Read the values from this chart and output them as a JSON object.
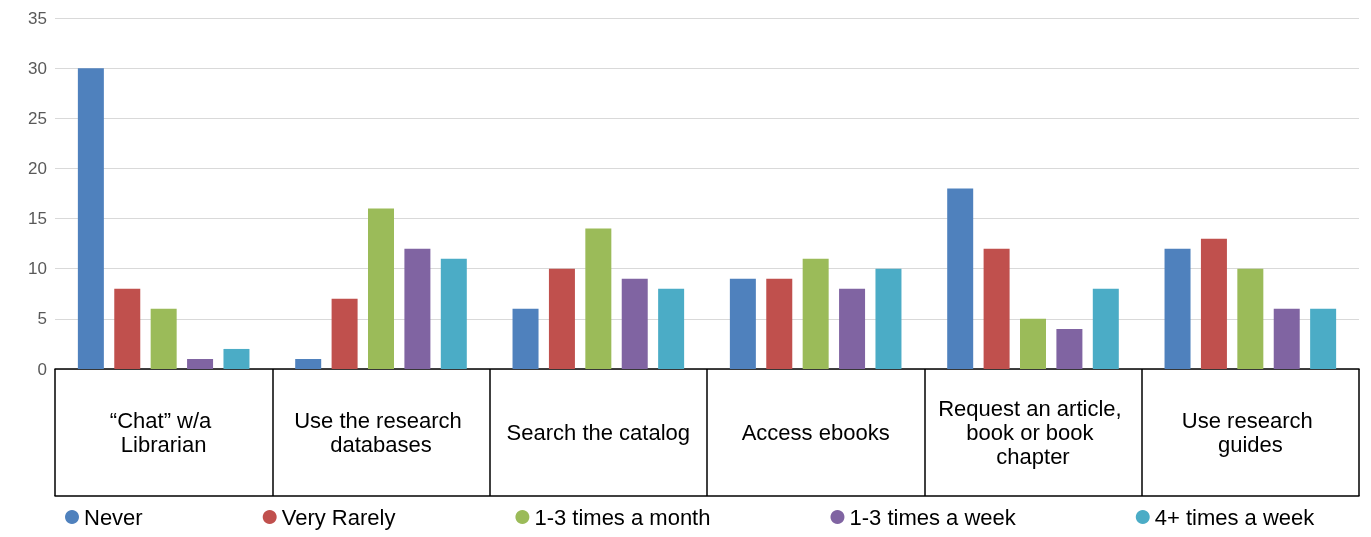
{
  "chart_data": {
    "type": "bar",
    "categories": [
      "“Chat” w/a Librarian",
      "Use the research databases",
      "Search the catalog",
      "Access ebooks",
      "Request an article, book or book chapter",
      "Use research guides"
    ],
    "series": [
      {
        "name": "Never",
        "color": "#4f81bd",
        "values": [
          30,
          1,
          6,
          9,
          18,
          12
        ]
      },
      {
        "name": "Very Rarely",
        "color": "#c0504d",
        "values": [
          8,
          7,
          10,
          9,
          12,
          13
        ]
      },
      {
        "name": "1-3 times a month",
        "color": "#9bbb59",
        "values": [
          6,
          16,
          14,
          11,
          5,
          10
        ]
      },
      {
        "name": "1-3 times a week",
        "color": "#8064a2",
        "values": [
          1,
          12,
          9,
          8,
          4,
          6
        ]
      },
      {
        "name": "4+ times a week",
        "color": "#4bacc6",
        "values": [
          2,
          11,
          8,
          10,
          8,
          6
        ]
      }
    ],
    "ylim": [
      0,
      35
    ],
    "yticks": [
      0,
      5,
      10,
      15,
      20,
      25,
      30,
      35
    ],
    "grid": "y",
    "legend": "bottom"
  }
}
